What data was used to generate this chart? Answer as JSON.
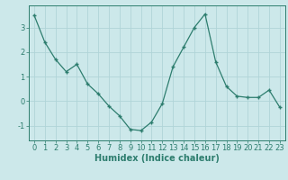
{
  "x": [
    0,
    1,
    2,
    3,
    4,
    5,
    6,
    7,
    8,
    9,
    10,
    11,
    12,
    13,
    14,
    15,
    16,
    17,
    18,
    19,
    20,
    21,
    22,
    23
  ],
  "y": [
    3.5,
    2.4,
    1.7,
    1.2,
    1.5,
    0.7,
    0.3,
    -0.2,
    -0.6,
    -1.15,
    -1.2,
    -0.85,
    -0.1,
    1.4,
    2.2,
    3.0,
    3.55,
    1.6,
    0.6,
    0.2,
    0.15,
    0.15,
    0.45,
    -0.25
  ],
  "line_color": "#2d7d6e",
  "marker": "+",
  "marker_size": 3.5,
  "marker_lw": 1.0,
  "line_width": 0.9,
  "bg_color": "#cce8ea",
  "grid_color": "#b0d4d8",
  "xlabel": "Humidex (Indice chaleur)",
  "xlabel_fontsize": 7,
  "tick_fontsize": 6,
  "ylim": [
    -1.6,
    3.9
  ],
  "xlim": [
    -0.5,
    23.5
  ],
  "yticks": [
    -1,
    0,
    1,
    2,
    3
  ],
  "xticks": [
    0,
    1,
    2,
    3,
    4,
    5,
    6,
    7,
    8,
    9,
    10,
    11,
    12,
    13,
    14,
    15,
    16,
    17,
    18,
    19,
    20,
    21,
    22,
    23
  ]
}
